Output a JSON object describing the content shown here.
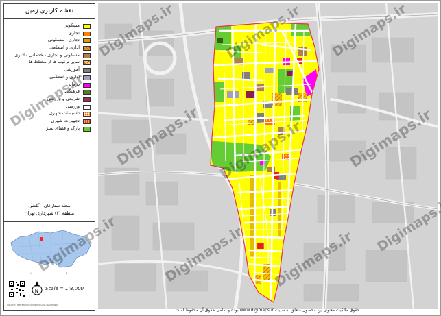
{
  "legend": {
    "title": "نقشه کاربری زمین",
    "items": [
      {
        "label": "مسکونی",
        "color": "#ffff00"
      },
      {
        "label": "تجاری",
        "color": "#ff7f00"
      },
      {
        "label": "تجاری - مسکونی",
        "color": "#d8a000"
      },
      {
        "label": "اداری و انتظامی",
        "color": "#f5a623",
        "hatched": true
      },
      {
        "label": "مسکونی و تجاری - خدماتی - اداری",
        "color": "#b08050"
      },
      {
        "label": "سایر ترکیب ها از مختلط ها",
        "color": "#ffd27f",
        "hatched": true
      },
      {
        "label": "آموزشی",
        "color": "#7f7f7f"
      },
      {
        "label": "اداری و انتظامی",
        "color": "#a0a0c0"
      },
      {
        "label": "درمانی",
        "color": "#ff00ff"
      },
      {
        "label": "فرهنگی",
        "color": "#5a7a2a"
      },
      {
        "label": "تفریحی و ورزشی",
        "color": "#a0305a"
      },
      {
        "label": "ورزشی",
        "color": "#ffffff"
      },
      {
        "label": "تاسیسات شهری",
        "color": "#ff6a00",
        "dotted": true
      },
      {
        "label": "تجهیزات شهری",
        "color": "#e04000",
        "dotted": true
      },
      {
        "label": "پارک و فضای سبز",
        "color": "#66cc33"
      }
    ]
  },
  "region": {
    "line1": "محله ستارخان - گلشن",
    "line2": "منطقه (۲) شهرداری تهران"
  },
  "scale": "Scale = 1:8,000",
  "credits": "Source: Tehran Municipality GIS / Digimaps",
  "watermark": "Digimaps.ir",
  "footer": "حقوق مالکیت معنوی این محصول متعلق به سایت www.digimaps.ir بوده و تمامی حقوق آن محفوظ است.",
  "locator_labels": [
    "۱",
    "۲"
  ]
}
